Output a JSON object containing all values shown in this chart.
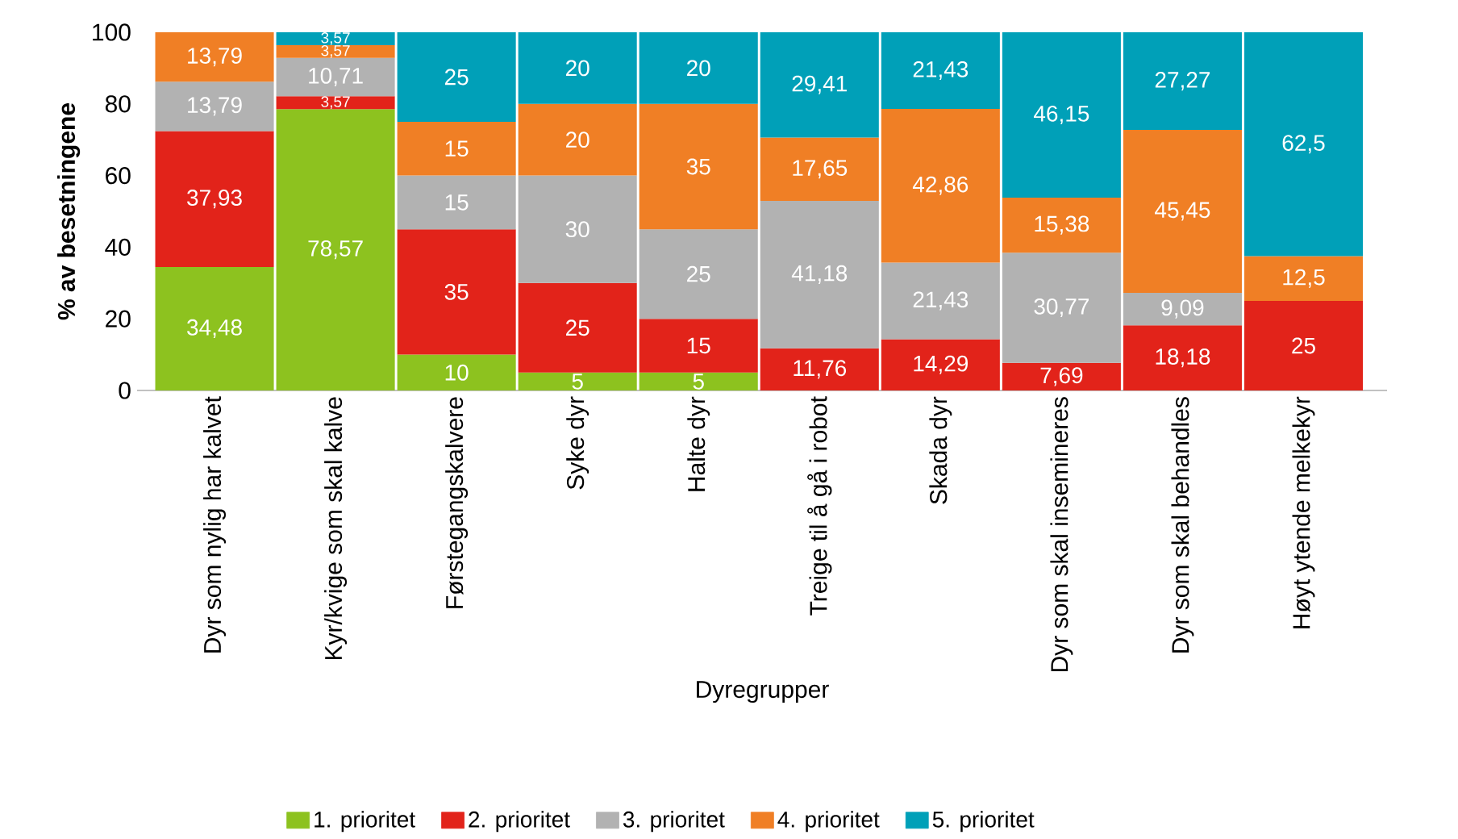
{
  "chart_data": {
    "type": "bar",
    "stacked": true,
    "xlabel": "Dyregrupper",
    "ylabel": "% av besetningene",
    "categories": [
      "Dyr som nylig har kalvet",
      "Kyr/kvige som skal kalve",
      "Førstegangskalvere",
      "Syke dyr",
      "Halte dyr",
      "Treige til å gå i robot",
      "Skada dyr",
      "Dyr som skal insemineres",
      "Dyr som skal behandles",
      "Høyt ytende melkekyr"
    ],
    "series": [
      {
        "name": "1. prioritet",
        "color": "#8dc21f",
        "values": [
          34.48,
          78.57,
          10,
          5,
          5,
          null,
          null,
          null,
          null,
          null
        ],
        "value_labels": [
          "34,48",
          "78,57",
          "10",
          "5",
          "5",
          null,
          null,
          null,
          null,
          null
        ]
      },
      {
        "name": "2. prioritet",
        "color": "#e2231a",
        "values": [
          37.93,
          3.57,
          35,
          25,
          15,
          11.76,
          14.29,
          7.69,
          18.18,
          25
        ],
        "value_labels": [
          "37,93",
          "3,57",
          "35",
          "25",
          "15",
          "11,76",
          "14,29",
          "7,69",
          "18,18",
          "25"
        ]
      },
      {
        "name": "3. prioritet",
        "color": "#b2b2b2",
        "values": [
          13.79,
          10.71,
          15,
          30,
          25,
          41.18,
          21.43,
          30.77,
          9.09,
          null
        ],
        "value_labels": [
          "13,79",
          "10,71",
          "15",
          "30",
          "25",
          "41,18",
          "21,43",
          "30,77",
          "9,09",
          null
        ]
      },
      {
        "name": "4. prioritet",
        "color": "#f07f25",
        "values": [
          13.79,
          3.57,
          15,
          20,
          35,
          17.65,
          42.86,
          15.38,
          45.45,
          12.5
        ],
        "value_labels": [
          "13,79",
          "3,57",
          "15",
          "20",
          "35",
          "17,65",
          "42,86",
          "15,38",
          "45,45",
          "12,5"
        ]
      },
      {
        "name": "5. prioritet",
        "color": "#00a0b8",
        "values": [
          null,
          3.57,
          25,
          20,
          20,
          29.41,
          21.43,
          46.15,
          27.27,
          62.5
        ],
        "value_labels": [
          null,
          "3,57",
          "25",
          "20",
          "20",
          "29,41",
          "21,43",
          "46,15",
          "27,27",
          "62,5"
        ]
      }
    ],
    "ylim": [
      0,
      100
    ],
    "yticks": [
      0,
      20,
      40,
      60,
      80,
      100
    ],
    "legend": "bottom"
  }
}
